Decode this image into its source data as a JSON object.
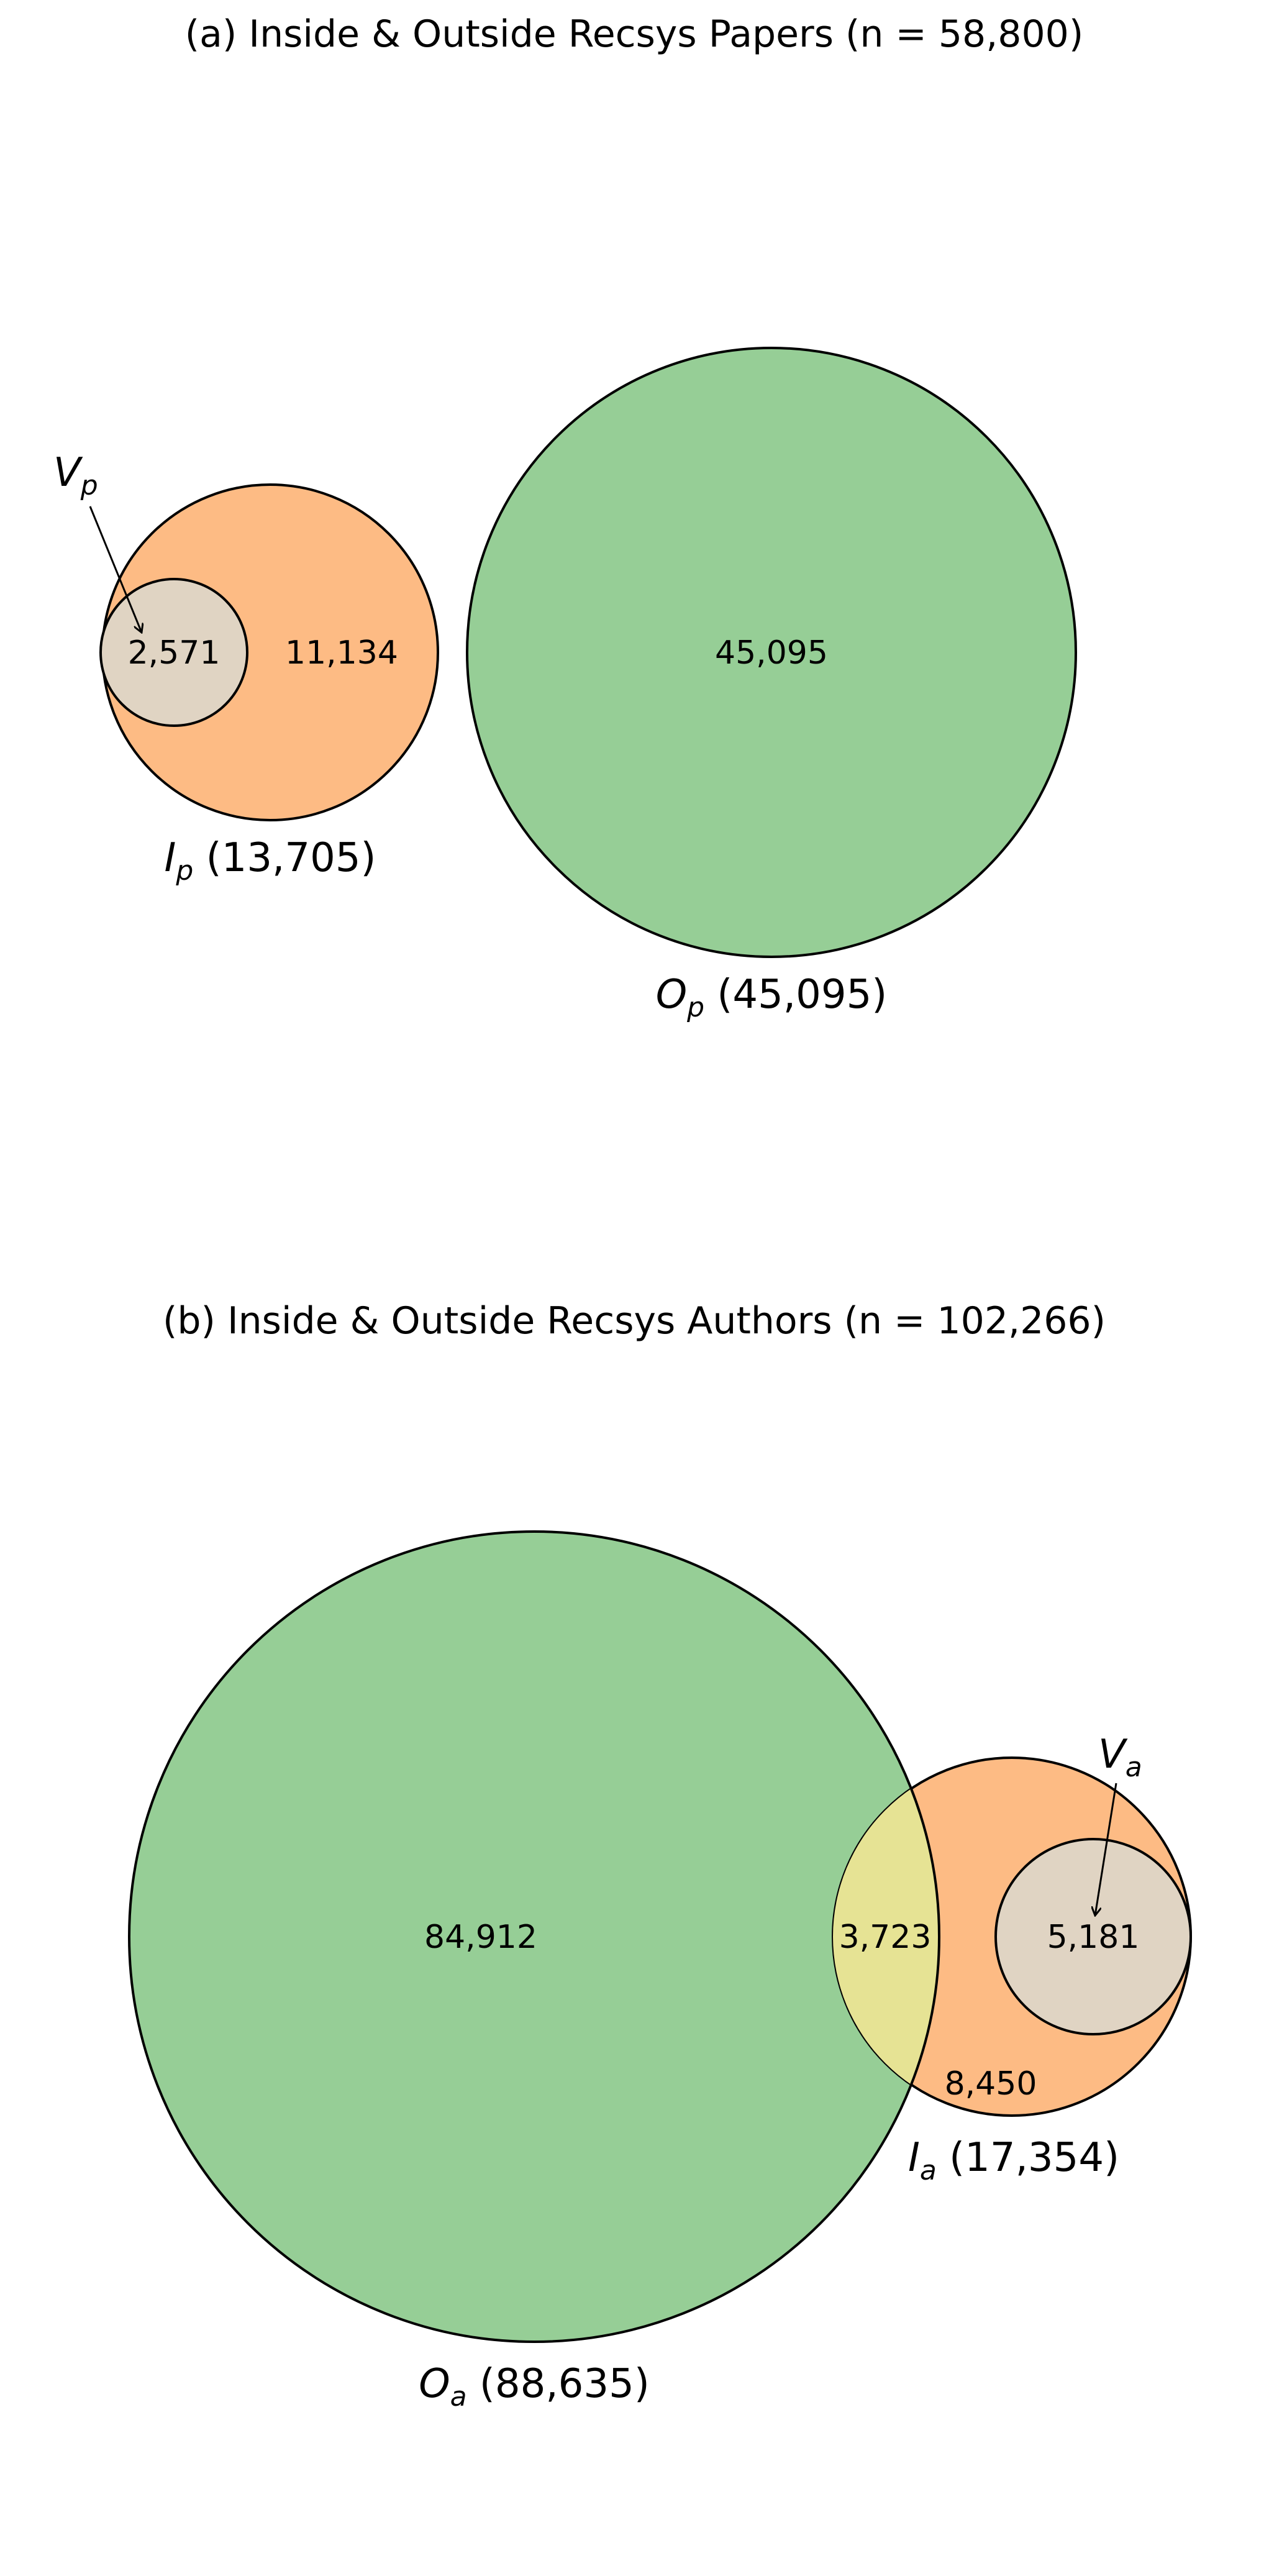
{
  "colors": {
    "inside": "#fdbb84",
    "outside": "#96ce96",
    "venue": "#e0d4c3",
    "overlap": "#e6e394",
    "stroke": "#000000"
  },
  "panel_a": {
    "title": "(a) Inside & Outside Recsys Papers (n = 58,800)",
    "venue_symbol": "V",
    "venue_sub": "p",
    "venue_count": "2,571",
    "inside_only_count": "11,134",
    "outside_count": "45,095",
    "inside_label": {
      "symbol": "I",
      "sub": "p",
      "total": " (13,705)"
    },
    "outside_label": {
      "symbol": "O",
      "sub": "p",
      "total": " (45,095)"
    }
  },
  "panel_b": {
    "title": "(b) Inside & Outside Recsys Authors (n = 102,266)",
    "venue_symbol": "V",
    "venue_sub": "a",
    "outside_only_count": "84,912",
    "overlap_count": "3,723",
    "venue_count": "5,181",
    "inside_only_count": "8,450",
    "inside_label": {
      "symbol": "I",
      "sub": "a",
      "total": " (17,354)"
    },
    "outside_label": {
      "symbol": "O",
      "sub": "a",
      "total": " (88,635)"
    }
  }
}
